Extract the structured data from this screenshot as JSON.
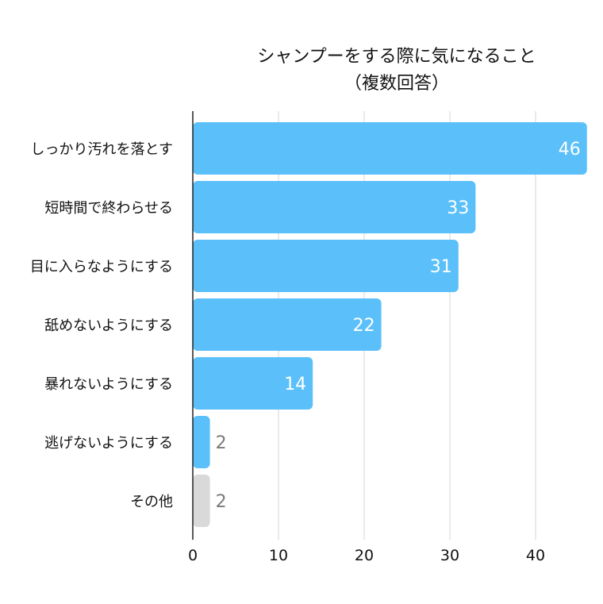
{
  "chart_data": {
    "type": "bar",
    "orientation": "horizontal",
    "title_line1": "シャンプーをする際に気になること",
    "title_line2": "（複数回答）",
    "categories": [
      "しっかり汚れを落とす",
      "短時間で終わらせる",
      "目に入らなようにする",
      "舐めないようにする",
      "暴れないようにする",
      "逃げないようにする",
      "その他"
    ],
    "values": [
      46,
      33,
      31,
      22,
      14,
      2,
      2
    ],
    "bar_colors": [
      "#5bc0fa",
      "#5bc0fa",
      "#5bc0fa",
      "#5bc0fa",
      "#5bc0fa",
      "#5bc0fa",
      "#d9d9d9"
    ],
    "xlim": [
      0,
      46
    ],
    "xticks": [
      0,
      10,
      20,
      30,
      40
    ],
    "grid": true,
    "legend": "none"
  }
}
